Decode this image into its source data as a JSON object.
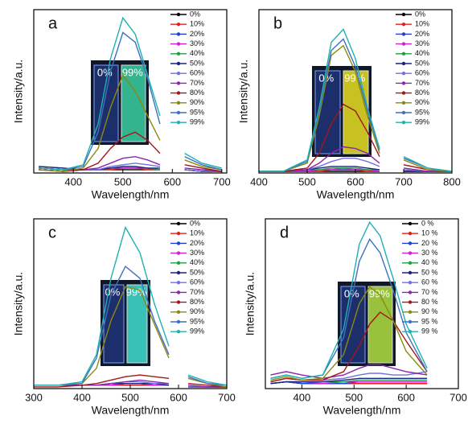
{
  "chart_data": [
    {
      "type": "line",
      "title": "a",
      "x_label": "Wavelength/nm",
      "y_label": "Intensity/a.u.",
      "annotations": [
        "0%",
        "99%"
      ],
      "x": [
        330,
        380,
        420,
        450,
        475,
        500,
        525,
        550,
        575,
        600,
        625,
        660,
        700
      ],
      "xlim": [
        320,
        710
      ],
      "xticks": [
        400,
        500,
        600,
        700
      ],
      "ylim": [
        0,
        100
      ],
      "legend": "upper right",
      "series": [
        {
          "name": "0%",
          "color": "#000000",
          "values": [
            3,
            2,
            2,
            2,
            2,
            2,
            2,
            2,
            2,
            null,
            2,
            1,
            1
          ]
        },
        {
          "name": "10%",
          "color": "#e02020",
          "values": [
            3,
            2,
            2,
            2,
            2,
            3,
            3,
            2,
            2,
            null,
            2,
            1,
            1
          ]
        },
        {
          "name": "20%",
          "color": "#2040d0",
          "values": [
            3,
            2,
            2,
            2,
            3,
            3,
            3,
            3,
            2,
            null,
            2,
            1,
            1
          ]
        },
        {
          "name": "30%",
          "color": "#d020d0",
          "values": [
            3,
            2,
            2,
            2,
            3,
            3,
            3,
            3,
            2,
            null,
            2,
            1,
            1
          ]
        },
        {
          "name": "40%",
          "color": "#20a040",
          "values": [
            4,
            3,
            2,
            2,
            3,
            4,
            4,
            3,
            2,
            null,
            2,
            1,
            1
          ]
        },
        {
          "name": "50%",
          "color": "#1a237e",
          "values": [
            4,
            3,
            2,
            2,
            3,
            4,
            4,
            3,
            3,
            null,
            2,
            1,
            1
          ]
        },
        {
          "name": "60%",
          "color": "#7070e0",
          "values": [
            2,
            1,
            2,
            2,
            4,
            5,
            6,
            5,
            4,
            null,
            2,
            1,
            1
          ]
        },
        {
          "name": "70%",
          "color": "#8e24aa",
          "values": [
            2,
            1,
            2,
            3,
            6,
            9,
            10,
            8,
            5,
            null,
            3,
            2,
            1
          ]
        },
        {
          "name": "80%",
          "color": "#a01818",
          "values": [
            2,
            1,
            2,
            6,
            15,
            22,
            25,
            20,
            12,
            null,
            5,
            3,
            1
          ]
        },
        {
          "name": "90%",
          "color": "#8a8a10",
          "values": [
            2,
            1,
            3,
            15,
            40,
            60,
            50,
            35,
            20,
            null,
            8,
            4,
            2
          ]
        },
        {
          "name": "95%",
          "color": "#3f6fc0",
          "values": [
            3,
            2,
            4,
            25,
            62,
            86,
            80,
            58,
            30,
            null,
            10,
            5,
            2
          ]
        },
        {
          "name": "99%",
          "color": "#20b0b0",
          "values": [
            3,
            2,
            5,
            30,
            70,
            95,
            85,
            60,
            35,
            null,
            12,
            6,
            3
          ]
        }
      ]
    },
    {
      "type": "line",
      "title": "b",
      "x_label": "Wavelength/nm",
      "y_label": "Intensity/a.u.",
      "annotations": [
        "0%",
        "99%"
      ],
      "x": [
        400,
        450,
        500,
        525,
        550,
        575,
        600,
        625,
        650,
        670,
        700,
        750,
        800
      ],
      "xlim": [
        400,
        800
      ],
      "xticks": [
        400,
        500,
        600,
        700,
        800
      ],
      "ylim": [
        0,
        100
      ],
      "legend": "upper right",
      "series": [
        {
          "name": "0%",
          "color": "#000000",
          "values": [
            1,
            1,
            1,
            1,
            1,
            1,
            1,
            1,
            1,
            null,
            1,
            1,
            1
          ]
        },
        {
          "name": "10%",
          "color": "#e02020",
          "values": [
            1,
            1,
            1,
            1,
            2,
            2,
            2,
            1,
            1,
            null,
            1,
            1,
            1
          ]
        },
        {
          "name": "20%",
          "color": "#2040d0",
          "values": [
            1,
            1,
            1,
            2,
            2,
            2,
            2,
            2,
            1,
            null,
            1,
            1,
            1
          ]
        },
        {
          "name": "30%",
          "color": "#d020d0",
          "values": [
            1,
            1,
            1,
            2,
            2,
            3,
            2,
            2,
            1,
            null,
            1,
            1,
            1
          ]
        },
        {
          "name": "40%",
          "color": "#20a040",
          "values": [
            1,
            1,
            2,
            2,
            3,
            3,
            3,
            2,
            2,
            null,
            1,
            1,
            1
          ]
        },
        {
          "name": "50%",
          "color": "#1a237e",
          "values": [
            1,
            1,
            2,
            3,
            4,
            4,
            4,
            3,
            2,
            null,
            1,
            1,
            1
          ]
        },
        {
          "name": "60%",
          "color": "#7070e0",
          "values": [
            1,
            1,
            2,
            4,
            7,
            9,
            9,
            7,
            4,
            null,
            2,
            1,
            1
          ]
        },
        {
          "name": "70%",
          "color": "#8e24aa",
          "values": [
            1,
            1,
            2,
            6,
            12,
            16,
            15,
            12,
            6,
            null,
            3,
            1,
            1
          ]
        },
        {
          "name": "80%",
          "color": "#a01818",
          "values": [
            1,
            1,
            3,
            12,
            30,
            42,
            38,
            25,
            10,
            null,
            5,
            2,
            1
          ]
        },
        {
          "name": "90%",
          "color": "#8a8a10",
          "values": [
            1,
            1,
            6,
            35,
            72,
            78,
            62,
            35,
            12,
            null,
            8,
            2,
            1
          ]
        },
        {
          "name": "95%",
          "color": "#3f6fc0",
          "values": [
            1,
            1,
            7,
            38,
            75,
            82,
            65,
            38,
            14,
            null,
            9,
            3,
            1
          ]
        },
        {
          "name": "99%",
          "color": "#20b0b0",
          "values": [
            1,
            1,
            8,
            40,
            80,
            88,
            70,
            40,
            15,
            null,
            10,
            3,
            1
          ]
        }
      ]
    },
    {
      "type": "line",
      "title": "c",
      "x_label": "Wavelength/nm",
      "y_label": "Intensity/a.u.",
      "annotations": [
        "0%",
        "99%"
      ],
      "x": [
        300,
        350,
        400,
        430,
        460,
        490,
        520,
        550,
        580,
        600,
        620,
        660,
        700
      ],
      "xlim": [
        300,
        700
      ],
      "xticks": [
        300,
        400,
        500,
        600,
        700
      ],
      "ylim": [
        0,
        100
      ],
      "legend": "upper right",
      "series": [
        {
          "name": "0%",
          "color": "#000000",
          "values": [
            2,
            2,
            2,
            2,
            2,
            2,
            2,
            2,
            2,
            null,
            1,
            1,
            1
          ]
        },
        {
          "name": "10%",
          "color": "#e02020",
          "values": [
            2,
            2,
            2,
            2,
            2,
            2,
            2,
            2,
            2,
            null,
            1,
            1,
            1
          ]
        },
        {
          "name": "20%",
          "color": "#2040d0",
          "values": [
            2,
            2,
            2,
            2,
            2,
            3,
            3,
            2,
            2,
            null,
            1,
            1,
            1
          ]
        },
        {
          "name": "30%",
          "color": "#d020d0",
          "values": [
            2,
            2,
            2,
            2,
            2,
            3,
            3,
            2,
            2,
            null,
            1,
            1,
            1
          ]
        },
        {
          "name": "40%",
          "color": "#20a040",
          "values": [
            2,
            2,
            2,
            2,
            3,
            3,
            3,
            3,
            2,
            null,
            1,
            1,
            1
          ]
        },
        {
          "name": "50%",
          "color": "#1a237e",
          "values": [
            2,
            2,
            2,
            2,
            3,
            3,
            3,
            3,
            2,
            null,
            1,
            1,
            1
          ]
        },
        {
          "name": "60%",
          "color": "#7070e0",
          "values": [
            2,
            2,
            2,
            2,
            3,
            4,
            4,
            3,
            3,
            null,
            1,
            1,
            1
          ]
        },
        {
          "name": "70%",
          "color": "#8e24aa",
          "values": [
            2,
            2,
            2,
            2,
            3,
            4,
            5,
            4,
            3,
            null,
            2,
            1,
            1
          ]
        },
        {
          "name": "80%",
          "color": "#a01818",
          "values": [
            1,
            1,
            2,
            3,
            5,
            7,
            8,
            7,
            6,
            null,
            3,
            2,
            1
          ]
        },
        {
          "name": "90%",
          "color": "#8a8a10",
          "values": [
            2,
            2,
            3,
            12,
            40,
            60,
            58,
            38,
            18,
            null,
            6,
            3,
            1
          ]
        },
        {
          "name": "95%",
          "color": "#3f6fc0",
          "values": [
            2,
            2,
            3,
            18,
            55,
            72,
            65,
            40,
            20,
            null,
            7,
            3,
            2
          ]
        },
        {
          "name": "99%",
          "color": "#20b0b0",
          "values": [
            2,
            2,
            4,
            20,
            65,
            95,
            80,
            50,
            25,
            null,
            8,
            4,
            2
          ]
        }
      ]
    },
    {
      "type": "line",
      "title": "d",
      "x_label": "Wavelength/nm",
      "y_label": "Intensity/a.u.",
      "annotations": [
        "0%",
        "99%"
      ],
      "x": [
        340,
        370,
        400,
        440,
        480,
        510,
        530,
        550,
        575,
        600,
        640,
        660,
        690
      ],
      "xlim": [
        330,
        700
      ],
      "xticks": [
        400,
        500,
        600,
        700
      ],
      "ylim": [
        0,
        100
      ],
      "legend": "upper right",
      "series": [
        {
          "name": "0 %",
          "color": "#000000",
          "values": [
            3,
            4,
            3,
            3,
            3,
            3,
            3,
            3,
            3,
            3,
            3,
            null,
            2
          ]
        },
        {
          "name": "10 %",
          "color": "#e02020",
          "values": [
            3,
            4,
            3,
            3,
            3,
            3,
            3,
            3,
            3,
            3,
            3,
            null,
            2
          ]
        },
        {
          "name": "20 %",
          "color": "#2040d0",
          "values": [
            3,
            4,
            3,
            3,
            3,
            4,
            4,
            4,
            4,
            4,
            4,
            null,
            2
          ]
        },
        {
          "name": "30 %",
          "color": "#d020d0",
          "values": [
            3,
            4,
            4,
            3,
            4,
            4,
            4,
            4,
            4,
            4,
            4,
            null,
            2
          ]
        },
        {
          "name": "40 %",
          "color": "#20a040",
          "values": [
            3,
            4,
            4,
            4,
            4,
            5,
            5,
            5,
            5,
            5,
            5,
            null,
            2
          ]
        },
        {
          "name": "50 %",
          "color": "#1a237e",
          "values": [
            3,
            4,
            4,
            4,
            5,
            6,
            6,
            6,
            6,
            6,
            6,
            null,
            2
          ]
        },
        {
          "name": "60 %",
          "color": "#7070e0",
          "values": [
            4,
            6,
            5,
            5,
            6,
            8,
            9,
            9,
            8,
            8,
            10,
            null,
            3
          ]
        },
        {
          "name": "70 %",
          "color": "#8e24aa",
          "values": [
            8,
            10,
            8,
            6,
            8,
            12,
            14,
            14,
            12,
            10,
            8,
            null,
            3
          ]
        },
        {
          "name": "80 %",
          "color": "#a01818",
          "values": [
            4,
            6,
            5,
            5,
            10,
            25,
            38,
            45,
            40,
            28,
            10,
            null,
            4
          ]
        },
        {
          "name": "90 %",
          "color": "#8a8a10",
          "values": [
            5,
            7,
            5,
            6,
            20,
            50,
            60,
            55,
            40,
            22,
            8,
            null,
            4
          ]
        },
        {
          "name": "95 %",
          "color": "#3f6fc0",
          "values": [
            6,
            8,
            6,
            8,
            30,
            75,
            88,
            80,
            58,
            33,
            10,
            null,
            5
          ]
        },
        {
          "name": "99 %",
          "color": "#20b0b0",
          "values": [
            6,
            8,
            6,
            8,
            35,
            85,
            98,
            90,
            65,
            38,
            12,
            null,
            6
          ]
        }
      ]
    }
  ]
}
